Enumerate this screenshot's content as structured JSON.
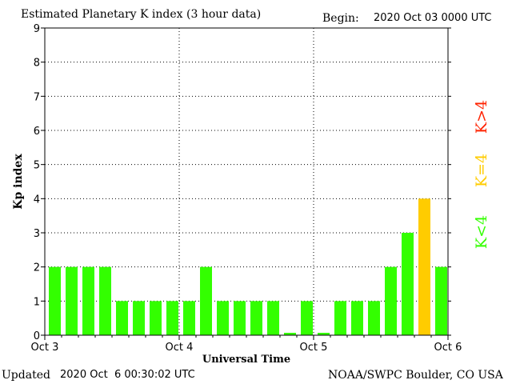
{
  "header": {
    "title": "Estimated Planetary K index (3 hour data)",
    "begin_label": "Begin:",
    "begin_value": "2020 Oct 03 0000 UTC"
  },
  "footer": {
    "updated_label": "Updated",
    "updated_value": "2020 Oct  6 00:30:02 UTC",
    "credit": "NOAA/SWPC Boulder, CO USA"
  },
  "chart_data": {
    "type": "bar",
    "title": "Estimated Planetary K index (3 hour data)",
    "xlabel": "Universal Time",
    "ylabel": "Kp index",
    "ylim": [
      0,
      9
    ],
    "yticks": [
      "0",
      "1",
      "2",
      "3",
      "4",
      "5",
      "6",
      "7",
      "8",
      "9"
    ],
    "xticks": [
      "Oct 3",
      "Oct 4",
      "Oct 5",
      "Oct 6"
    ],
    "grid": true,
    "values": [
      2,
      2,
      2,
      2,
      1,
      1,
      1,
      1,
      1,
      2,
      1,
      1,
      1,
      1,
      0.07,
      1,
      0.07,
      1,
      1,
      1,
      2,
      3,
      4,
      2
    ],
    "legend": [
      {
        "label": "K<4",
        "color": "#33ff00"
      },
      {
        "label": "K=4",
        "color": "#ffcc00"
      },
      {
        "label": "K>4",
        "color": "#ff2200"
      }
    ],
    "colors": {
      "low": "#33ff00",
      "equal": "#ffcc00",
      "high": "#ff2200"
    }
  }
}
